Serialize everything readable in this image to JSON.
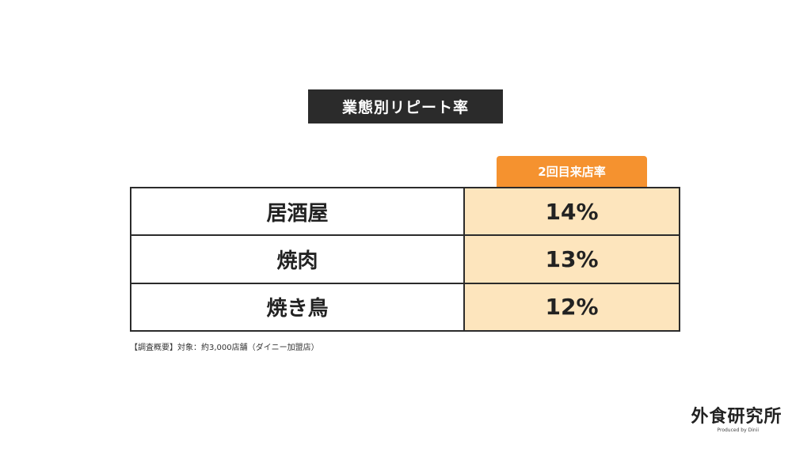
{
  "title": "業態別リピート率",
  "column_header": "2回目来店率",
  "rows": [
    {
      "name": "居酒屋",
      "value": "14%"
    },
    {
      "name": "焼肉",
      "value": "13%"
    },
    {
      "name": "焼き鳥",
      "value": "12%"
    }
  ],
  "note": "【調査概要】対象：約3,000店舗（ダイニー加盟店）",
  "logo": {
    "main": "外食研究所",
    "sub": "Produced by Dinii"
  },
  "colors": {
    "title_bg": "#2b2b2b",
    "header_bg": "#f5922f",
    "value_bg": "#fde5bd"
  }
}
